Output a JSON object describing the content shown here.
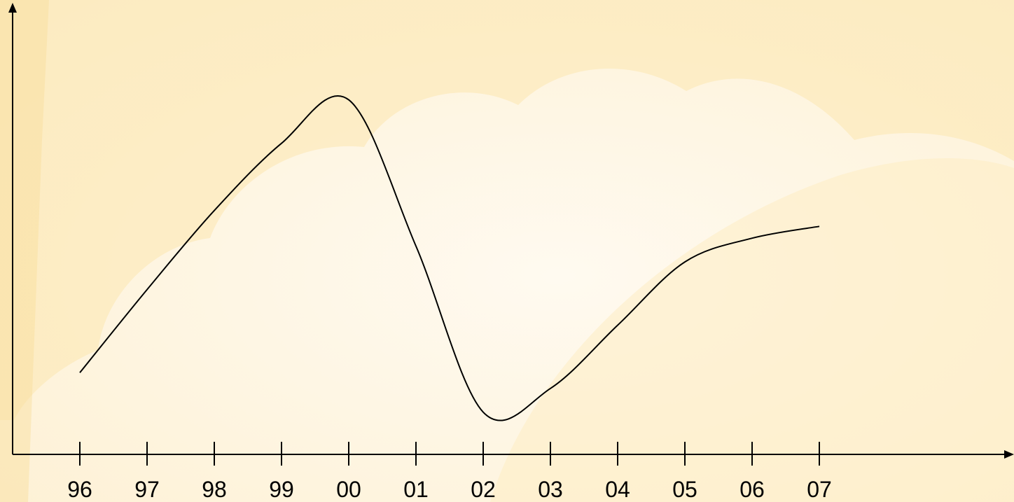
{
  "chart_data": {
    "type": "line",
    "title": "",
    "xlabel": "",
    "ylabel": "",
    "x": [
      "96",
      "97",
      "98",
      "99",
      "00",
      "01",
      "02",
      "03",
      "04",
      "05",
      "06",
      "07"
    ],
    "series": [
      {
        "values": [
          10,
          31,
          51,
          68,
          79,
          42,
          0,
          6,
          22,
          38,
          44,
          47
        ]
      }
    ],
    "ylim": [
      -2,
      83
    ],
    "grid": false,
    "legend": "none",
    "axis_arrows": true,
    "colors": {
      "line": "#000000",
      "axis": "#000000",
      "background": "#fffdf6",
      "shape": "#fbe7b4"
    }
  }
}
